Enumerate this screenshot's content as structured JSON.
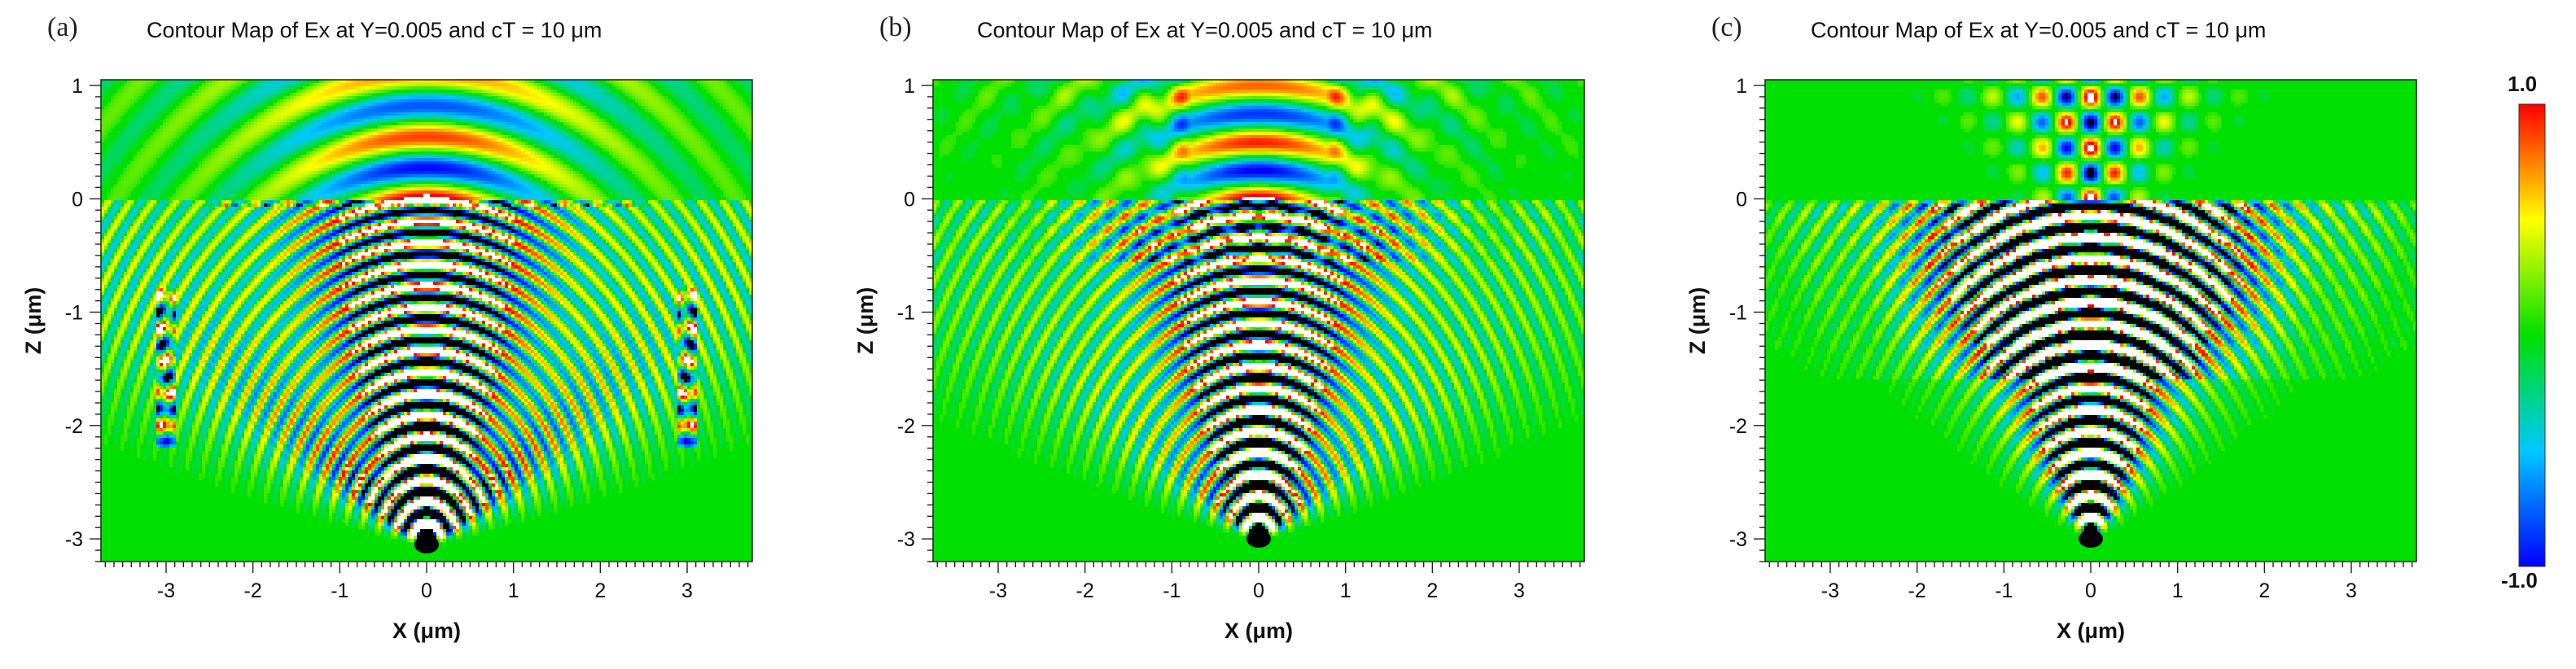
{
  "figure": {
    "colorbar": {
      "max_label": "1.0",
      "min_label": "-1.0",
      "range": [
        -1.0,
        1.0
      ]
    }
  },
  "chart_data": [
    {
      "type": "heatmap",
      "panel": "(a)",
      "title": "Contour Map of Ex at Y=0.005 and cT = 10 μm",
      "xlabel": "X (μm)",
      "ylabel": "Z (μm)",
      "xlim": [
        -3.75,
        3.75
      ],
      "ylim": [
        -3.2,
        1.05
      ],
      "xticks": [
        -3,
        -2,
        -1,
        0,
        1,
        2,
        3
      ],
      "yticks": [
        1,
        0,
        -1,
        -2,
        -3
      ],
      "xtick_labels": [
        "-3",
        "-2",
        "-1",
        "0",
        "1",
        "2",
        "3"
      ],
      "ytick_labels": [
        "1",
        "0",
        "-1",
        "-2",
        "-3"
      ],
      "value_range": [
        -1.0,
        1.0
      ],
      "source_point": [
        0,
        -3.05
      ],
      "features": [
        "wide dome above Z=0",
        "dotted interface band at Z=0",
        "side field patches at X=±3"
      ]
    },
    {
      "type": "heatmap",
      "panel": "(b)",
      "title": "Contour Map of Ex at Y=0.005 and cT = 10 μm",
      "xlabel": "X (μm)",
      "ylabel": "Z (μm)",
      "xlim": [
        -3.75,
        3.75
      ],
      "ylim": [
        -3.2,
        1.05
      ],
      "xticks": [
        -3,
        -2,
        -1,
        0,
        1,
        2,
        3
      ],
      "yticks": [
        1,
        0,
        -1,
        -2,
        -3
      ],
      "xtick_labels": [
        "-3",
        "-2",
        "-1",
        "0",
        "1",
        "2",
        "3"
      ],
      "ytick_labels": [
        "1",
        "0",
        "-1",
        "-2",
        "-3"
      ],
      "value_range": [
        -1.0,
        1.0
      ],
      "source_point": [
        0,
        -3.0
      ],
      "features": [
        "dome above Z=0 with side lobes",
        "no side patches"
      ]
    },
    {
      "type": "heatmap",
      "panel": "(c)",
      "title": "Contour Map of Ex at Y=0.005 and cT = 10 μm",
      "xlabel": "X (μm)",
      "ylabel": "Z (μm)",
      "xlim": [
        -3.75,
        3.75
      ],
      "ylim": [
        -3.2,
        1.05
      ],
      "xticks": [
        -3,
        -2,
        -1,
        0,
        1,
        2,
        3
      ],
      "yticks": [
        1,
        0,
        -1,
        -2,
        -3
      ],
      "xtick_labels": [
        "-3",
        "-2",
        "-1",
        "0",
        "1",
        "2",
        "3"
      ],
      "ytick_labels": [
        "1",
        "0",
        "-1",
        "-2",
        "-3"
      ],
      "value_range": [
        -1.0,
        1.0
      ],
      "source_point": [
        0,
        -3.0
      ],
      "features": [
        "strong standing-wave region between Z=-1.5 and Z=0",
        "narrow lobes above Z=0"
      ],
      "colorbar": true
    }
  ]
}
